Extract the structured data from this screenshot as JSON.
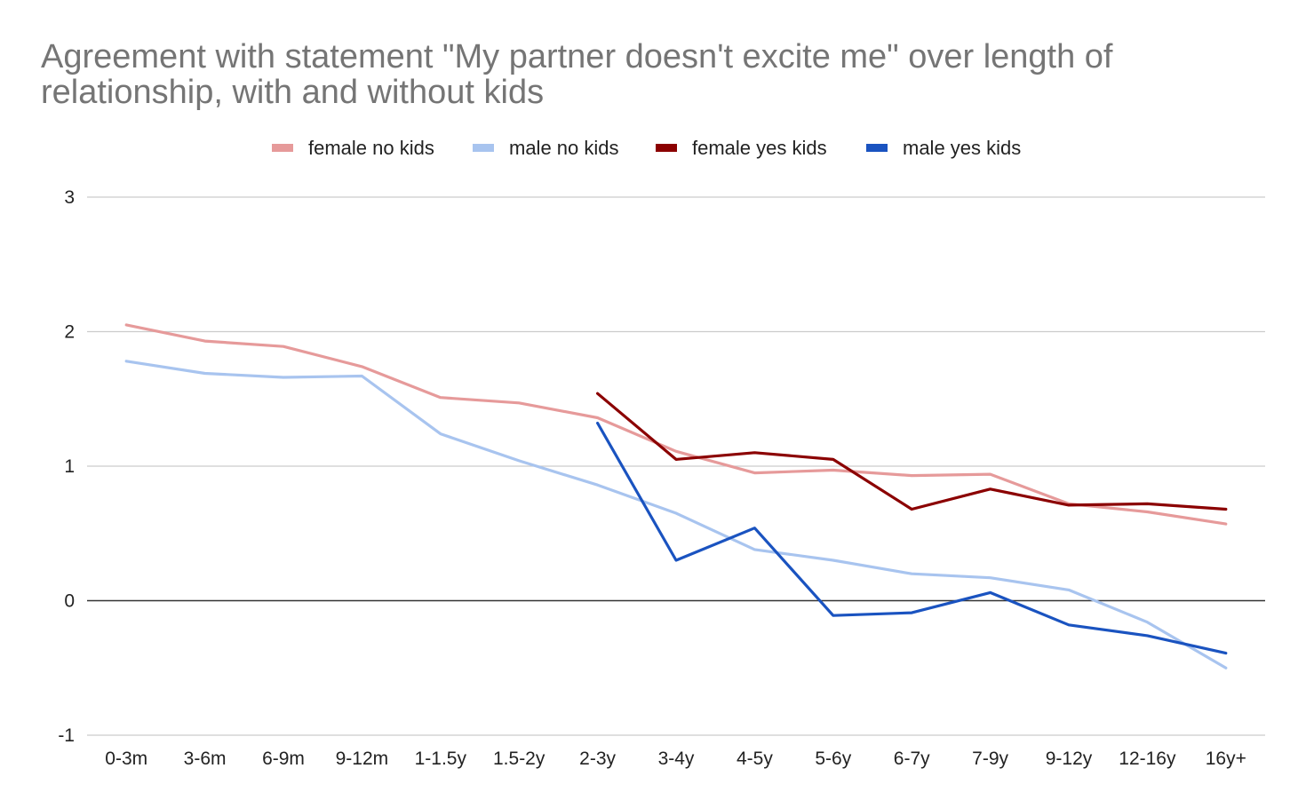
{
  "chart_data": {
    "type": "line",
    "title": "Agreement with statement \"My partner doesn't excite me\" over length of relationship, with and without kids",
    "xlabel": "",
    "ylabel": "",
    "ylim": [
      -1,
      3
    ],
    "yticks": [
      "3",
      "2",
      "1",
      "0",
      "-1"
    ],
    "ytick_values": [
      3,
      2,
      1,
      0,
      -1
    ],
    "grid": true,
    "legend_position": "top",
    "categories": [
      "0-3m",
      "3-6m",
      "6-9m",
      "9-12m",
      "1-1.5y",
      "1.5-2y",
      "2-3y",
      "3-4y",
      "4-5y",
      "5-6y",
      "6-7y",
      "7-9y",
      "9-12y",
      "12-16y",
      "16y+"
    ],
    "series": [
      {
        "name": "female no kids",
        "color": "#e69a9a",
        "values": [
          2.05,
          1.93,
          1.89,
          1.74,
          1.51,
          1.47,
          1.36,
          1.11,
          0.95,
          0.97,
          0.93,
          0.94,
          0.72,
          0.66,
          0.57
        ]
      },
      {
        "name": "male no kids",
        "color": "#a8c4ef",
        "values": [
          1.78,
          1.69,
          1.66,
          1.67,
          1.24,
          1.04,
          0.86,
          0.65,
          0.38,
          0.3,
          0.2,
          0.17,
          0.08,
          -0.16,
          -0.5
        ]
      },
      {
        "name": "female yes kids",
        "color": "#8b0000",
        "values": [
          null,
          null,
          null,
          null,
          null,
          null,
          1.54,
          1.05,
          1.1,
          1.05,
          0.68,
          0.83,
          0.71,
          0.72,
          0.68
        ]
      },
      {
        "name": "male yes kids",
        "color": "#1a53c0",
        "values": [
          null,
          null,
          null,
          null,
          null,
          null,
          1.32,
          0.3,
          0.54,
          -0.11,
          -0.09,
          0.06,
          -0.18,
          -0.26,
          -0.39
        ]
      }
    ]
  }
}
